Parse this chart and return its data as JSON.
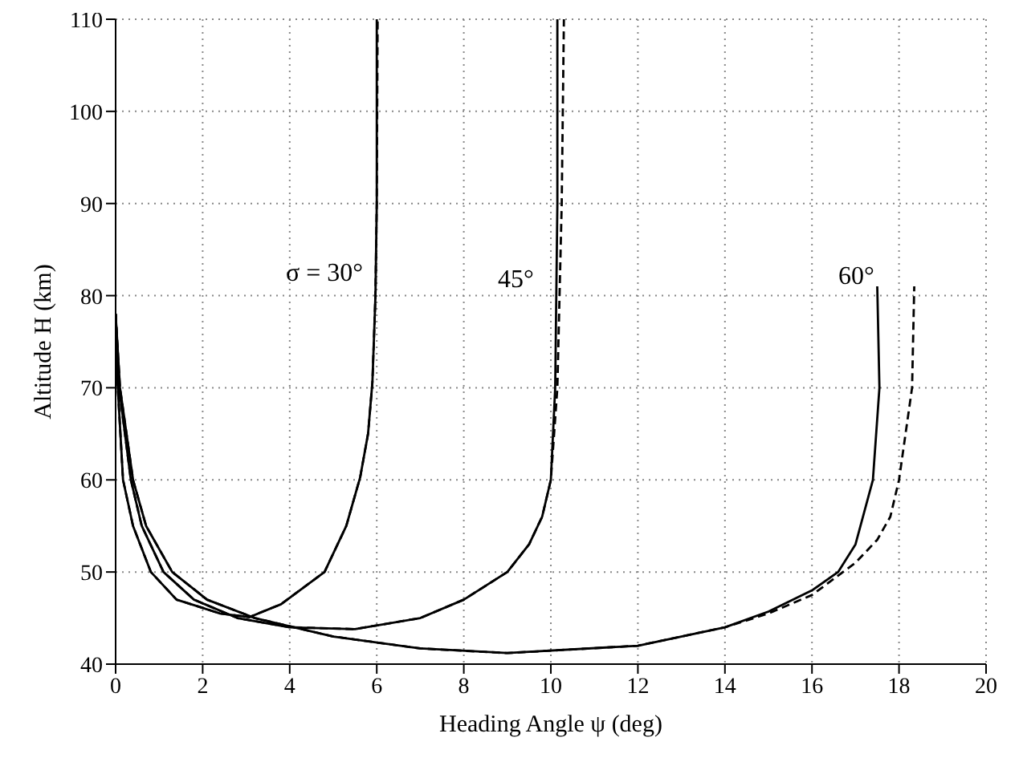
{
  "chart_data": {
    "type": "line",
    "xlabel": "Heading Angle ψ (deg)",
    "ylabel": "Altitude H (km)",
    "xlim": [
      0,
      20
    ],
    "xticks": [
      0,
      2,
      4,
      6,
      8,
      10,
      12,
      14,
      16,
      18,
      20
    ],
    "ylim": [
      40,
      110
    ],
    "yticks": [
      40,
      50,
      60,
      70,
      80,
      90,
      100,
      110
    ],
    "grid": true,
    "marker": "none",
    "series": [
      {
        "color": "#000000",
        "line_style": "solid",
        "x": [
          0,
          0.05,
          0.17,
          0.4,
          0.81,
          1.4,
          2.4,
          3.07,
          3.8,
          4.8,
          5.3,
          5.62,
          5.8,
          5.9,
          5.97,
          6.0,
          6.0
        ],
        "values": [
          78,
          70,
          60,
          55,
          50,
          47,
          45.5,
          45.1,
          46.5,
          50,
          55,
          60.3,
          65,
          70.6,
          80,
          90,
          110
        ]
      },
      {
        "color": "#000000",
        "line_style": "dashed",
        "x": [
          0,
          0.05,
          0.17,
          0.4,
          0.81,
          1.4,
          2.4,
          3.07,
          3.8,
          4.8,
          5.3,
          5.62,
          5.8,
          5.9,
          5.97,
          6.0,
          6.02
        ],
        "values": [
          78,
          70,
          60,
          55,
          50,
          47,
          45.5,
          45.1,
          46.5,
          50,
          55,
          60.3,
          65,
          70.6,
          80,
          90,
          110
        ]
      },
      {
        "color": "#000000",
        "line_style": "solid",
        "x": [
          0,
          0.08,
          0.35,
          0.6,
          1.1,
          1.8,
          2.8,
          4,
          5.5,
          7,
          8,
          9,
          9.5,
          9.8,
          10,
          10.1,
          10.15,
          10.15
        ],
        "values": [
          78,
          70,
          60,
          55,
          50,
          47,
          45,
          44,
          43.8,
          45,
          47,
          50,
          53,
          56,
          60,
          70,
          90,
          110
        ]
      },
      {
        "color": "#000000",
        "line_style": "dashed",
        "x": [
          0,
          0.08,
          0.35,
          0.6,
          1.1,
          1.8,
          2.8,
          4,
          5.5,
          7,
          8,
          9,
          9.5,
          9.8,
          10,
          10.15,
          10.25,
          10.3
        ],
        "values": [
          78,
          70,
          60,
          55,
          50,
          47,
          45,
          44,
          43.8,
          45,
          47,
          50,
          53,
          56,
          60,
          70,
          90,
          110
        ]
      },
      {
        "color": "#000000",
        "line_style": "solid",
        "x": [
          0,
          0.1,
          0.4,
          0.7,
          1.3,
          2.1,
          3.2,
          5,
          7,
          9,
          12,
          14,
          15,
          16,
          16.6,
          17,
          17.4,
          17.55,
          17.5
        ],
        "values": [
          78,
          70,
          60,
          55,
          50,
          47,
          45,
          43,
          41.7,
          41.2,
          42,
          44,
          45.7,
          48,
          50,
          53,
          60,
          70,
          81
        ]
      },
      {
        "color": "#000000",
        "line_style": "dashed",
        "x": [
          0,
          0.1,
          0.4,
          0.7,
          1.3,
          2.1,
          3.2,
          5,
          7,
          9,
          12,
          14,
          15,
          16,
          17,
          17.5,
          17.8,
          18,
          18.3,
          18.35
        ],
        "values": [
          78,
          70,
          60,
          55,
          50,
          47,
          45,
          43,
          41.7,
          41.2,
          42,
          44,
          45.5,
          47.5,
          51,
          53.5,
          56,
          60,
          70,
          81
        ]
      }
    ],
    "annotations": [
      "σ = 30°",
      "45°",
      "60°"
    ]
  }
}
